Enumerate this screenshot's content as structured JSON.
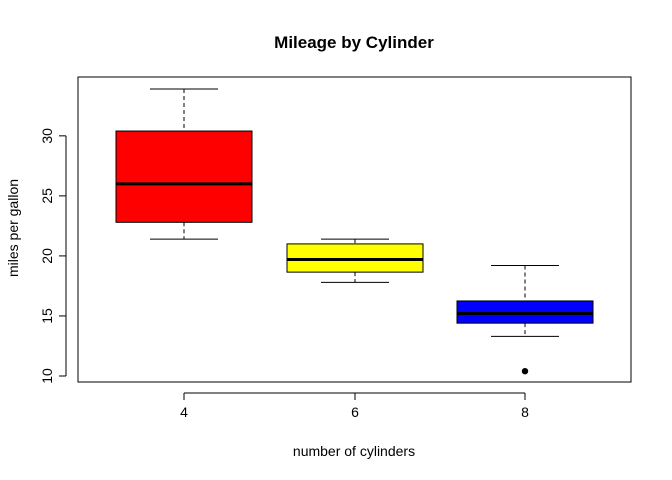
{
  "chart_data": {
    "type": "box",
    "title": "Mileage by Cylinder",
    "xlabel": "number of cylinders",
    "ylabel": "miles per gallon",
    "categories": [
      "4",
      "6",
      "8"
    ],
    "yticks": [
      10,
      15,
      20,
      25,
      30
    ],
    "ylim": [
      9.5,
      34.9
    ],
    "grid": false,
    "boxes": [
      {
        "category": "4",
        "color": "#ff0000",
        "min": 21.4,
        "q1": 22.8,
        "median": 26.0,
        "q3": 30.4,
        "max": 33.9,
        "outliers": []
      },
      {
        "category": "6",
        "color": "#ffff00",
        "min": 17.8,
        "q1": 18.65,
        "median": 19.7,
        "q3": 21.0,
        "max": 21.4,
        "outliers": []
      },
      {
        "category": "8",
        "color": "#0000ff",
        "min": 13.3,
        "q1": 14.4,
        "median": 15.2,
        "q3": 16.25,
        "max": 19.2,
        "outliers": [
          10.4
        ]
      }
    ]
  }
}
